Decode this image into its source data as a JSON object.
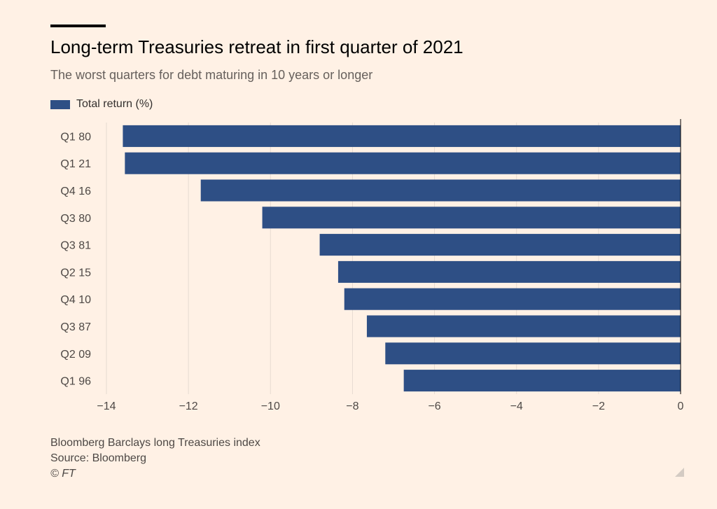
{
  "header": {
    "title": "Long-term Treasuries retreat in first quarter of 2021",
    "subtitle": "The worst quarters for debt maturing in 10 years or longer"
  },
  "legend": {
    "label": "Total return (%)"
  },
  "colors": {
    "bar": "#2e4f85",
    "grid": "#e6dbd1",
    "axis": "#000000",
    "background": "#fff1e5"
  },
  "footer": {
    "note": "Bloomberg Barclays long Treasuries index",
    "source": "Source: Bloomberg",
    "copyright": "© FT"
  },
  "chart_data": {
    "type": "bar",
    "orientation": "horizontal",
    "title": "Long-term Treasuries retreat in first quarter of 2021",
    "subtitle": "The worst quarters for debt maturing in 10 years or longer",
    "categories": [
      "Q1 80",
      "Q1 21",
      "Q4 16",
      "Q3 80",
      "Q3 81",
      "Q2 15",
      "Q4 10",
      "Q3 87",
      "Q2 09",
      "Q1 96"
    ],
    "series": [
      {
        "name": "Total return (%)",
        "values": [
          -13.6,
          -13.55,
          -11.7,
          -10.2,
          -8.8,
          -8.35,
          -8.2,
          -7.65,
          -7.2,
          -6.75
        ]
      }
    ],
    "xlim": [
      -14,
      0
    ],
    "xticks": [
      -14,
      -12,
      -10,
      -8,
      -6,
      -4,
      -2,
      0
    ],
    "xlabel": "",
    "ylabel": "",
    "grid": true,
    "legend_position": "top-left"
  }
}
